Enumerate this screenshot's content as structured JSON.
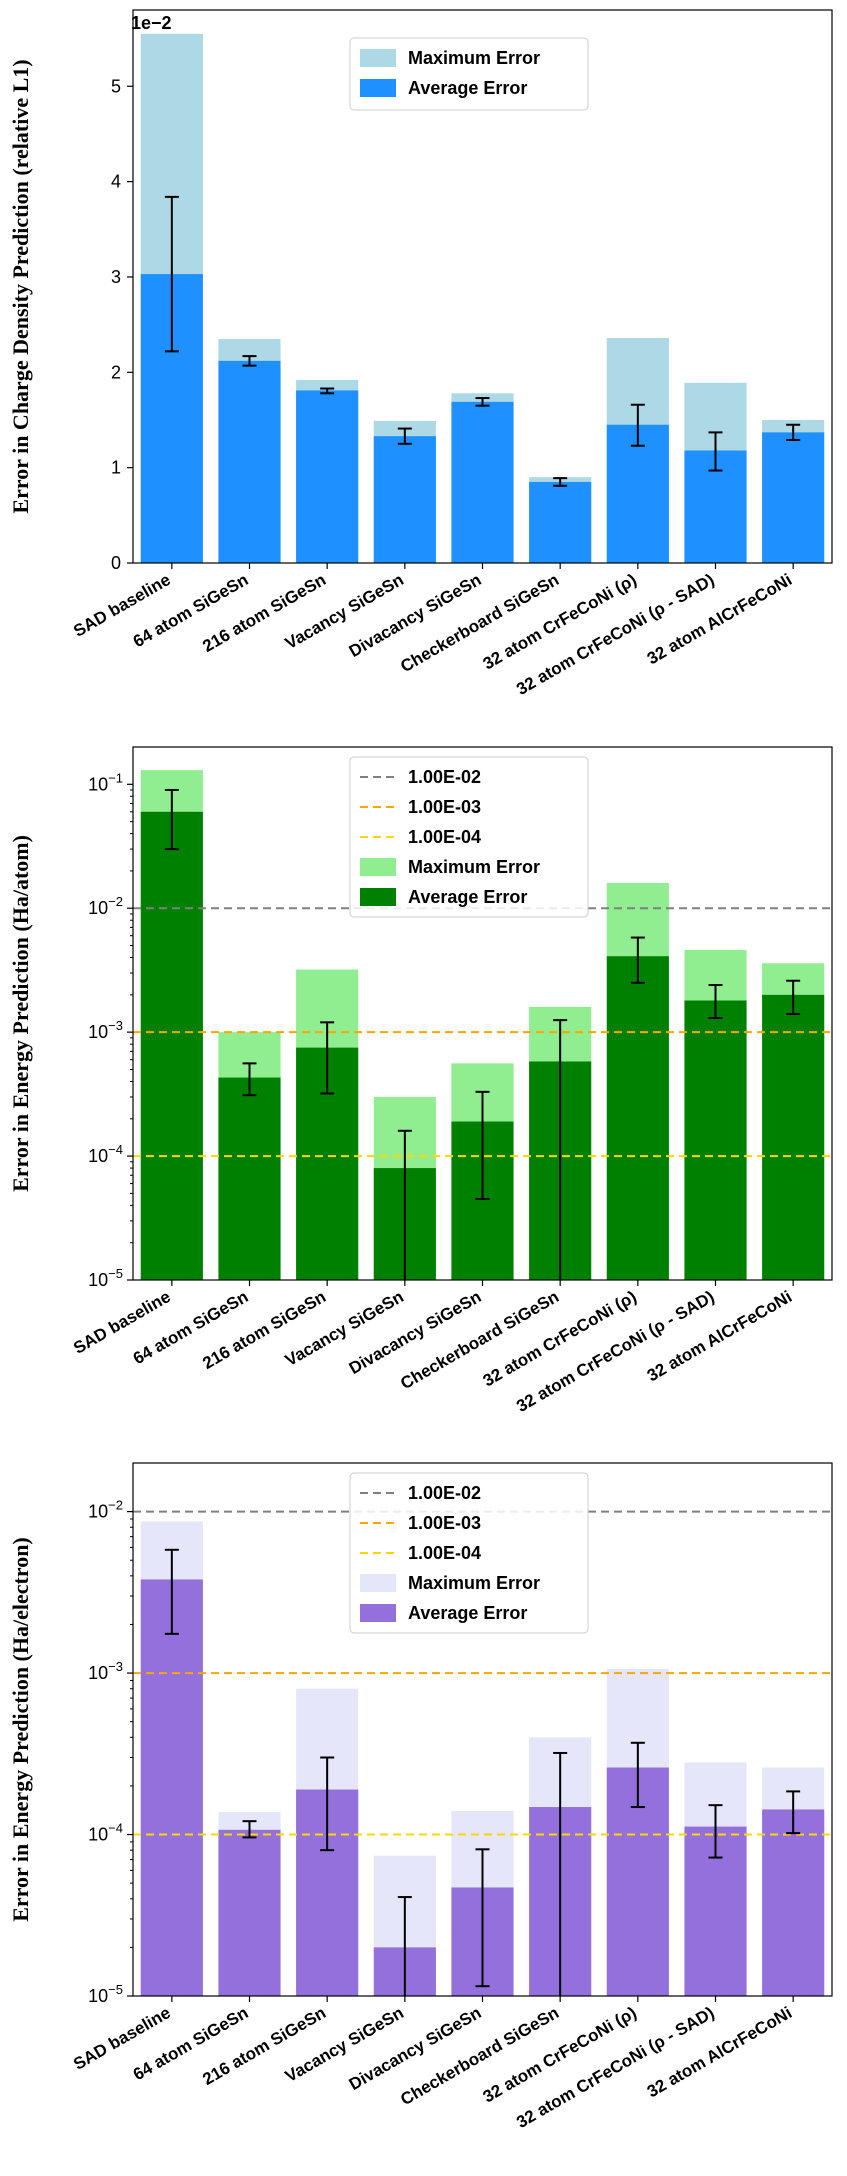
{
  "chart_data": [
    {
      "type": "bar",
      "scale": "linear",
      "ylabel": "Error in Charge Density Prediction (relative L1)",
      "scale_label": "1e−2",
      "ylim": [
        0,
        5.8
      ],
      "yticks": [
        0,
        1,
        2,
        3,
        4,
        5
      ],
      "categories": [
        "SAD baseline",
        "64 atom SiGeSn",
        "216 atom SiGeSn",
        "Vacancy SiGeSn",
        "Divacancy SiGeSn",
        "Checkerboard SiGeSn",
        "32 atom CrFeCoNi (ρ)",
        "32 atom CrFeCoNi (ρ - SAD)",
        "32 atom AlCrFeCoNi"
      ],
      "series": [
        {
          "name": "Maximum Error",
          "color": "#add8e6",
          "values": [
            5.55,
            2.35,
            1.92,
            1.49,
            1.78,
            0.9,
            2.36,
            1.89,
            1.5
          ]
        },
        {
          "name": "Average Error",
          "color": "#1e90ff",
          "values": [
            3.03,
            2.12,
            1.81,
            1.33,
            1.69,
            0.85,
            1.45,
            1.18,
            1.37
          ]
        }
      ],
      "error_low": [
        2.22,
        2.07,
        1.78,
        1.25,
        1.65,
        0.81,
        1.23,
        0.97,
        1.29
      ],
      "error_high": [
        3.84,
        2.17,
        1.83,
        1.41,
        1.73,
        0.89,
        1.66,
        1.37,
        1.45
      ],
      "hlines": [],
      "legend": "top-center"
    },
    {
      "type": "bar",
      "scale": "log",
      "ylabel": "Error in Energy Prediction (Ha/atom)",
      "ylim": [
        1e-05,
        0.2
      ],
      "ytick_exps": [
        -5,
        -4,
        -3,
        -2,
        -1
      ],
      "categories": [
        "SAD baseline",
        "64 atom SiGeSn",
        "216 atom SiGeSn",
        "Vacancy SiGeSn",
        "Divacancy SiGeSn",
        "Checkerboard SiGeSn",
        "32 atom CrFeCoNi (ρ)",
        "32 atom CrFeCoNi (ρ - SAD)",
        "32 atom AlCrFeCoNi"
      ],
      "series": [
        {
          "name": "Maximum Error",
          "color": "#90ee90",
          "values": [
            0.13,
            0.001,
            0.0032,
            0.0003,
            0.00056,
            0.0016,
            0.016,
            0.0046,
            0.0036
          ]
        },
        {
          "name": "Average Error",
          "color": "#008000",
          "values": [
            0.06,
            0.00043,
            0.00075,
            8e-05,
            0.00019,
            0.00058,
            0.0041,
            0.0018,
            0.002
          ]
        }
      ],
      "error_low": [
        0.03,
        0.00031,
        0.00032,
        1e-05,
        4.5e-05,
        1e-05,
        0.0025,
        0.0013,
        0.0014
      ],
      "error_high": [
        0.09,
        0.00056,
        0.0012,
        0.00016,
        0.00033,
        0.00125,
        0.0058,
        0.0024,
        0.0026
      ],
      "hlines": [
        {
          "label": "1.00E-02",
          "value": 0.01,
          "color": "#808080"
        },
        {
          "label": "1.00E-03",
          "value": 0.001,
          "color": "#ffa500"
        },
        {
          "label": "1.00E-04",
          "value": 0.0001,
          "color": "#ffd700"
        }
      ],
      "legend": "top-center"
    },
    {
      "type": "bar",
      "scale": "log",
      "ylabel": "Error in Energy Prediction (Ha/electron)",
      "ylim": [
        1e-05,
        0.02
      ],
      "ytick_exps": [
        -5,
        -4,
        -3,
        -2
      ],
      "categories": [
        "SAD baseline",
        "64 atom SiGeSn",
        "216 atom SiGeSn",
        "Vacancy SiGeSn",
        "Divacancy SiGeSn",
        "Checkerboard SiGeSn",
        "32 atom CrFeCoNi (ρ)",
        "32 atom CrFeCoNi (ρ - SAD)",
        "32 atom AlCrFeCoNi"
      ],
      "series": [
        {
          "name": "Maximum Error",
          "color": "#e6e6fa",
          "values": [
            0.0087,
            0.000138,
            0.0008,
            7.4e-05,
            0.00014,
            0.0004,
            0.00106,
            0.00028,
            0.00026
          ]
        },
        {
          "name": "Average Error",
          "color": "#9370db",
          "values": [
            0.0038,
            0.000107,
            0.00019,
            2e-05,
            4.7e-05,
            0.000148,
            0.00026,
            0.000112,
            0.000143
          ]
        }
      ],
      "error_low": [
        0.00175,
        9.6e-05,
        8e-05,
        1e-05,
        1.15e-05,
        1e-05,
        0.000148,
        7.2e-05,
        0.000102
      ],
      "error_high": [
        0.0058,
        0.000121,
        0.0003,
        4.1e-05,
        8.1e-05,
        0.00032,
        0.00037,
        0.000152,
        0.000185
      ],
      "hlines": [
        {
          "label": "1.00E-02",
          "value": 0.01,
          "color": "#808080"
        },
        {
          "label": "1.00E-03",
          "value": 0.001,
          "color": "#ffa500"
        },
        {
          "label": "1.00E-04",
          "value": 0.0001,
          "color": "#ffd700"
        }
      ],
      "legend": "top-center"
    }
  ]
}
